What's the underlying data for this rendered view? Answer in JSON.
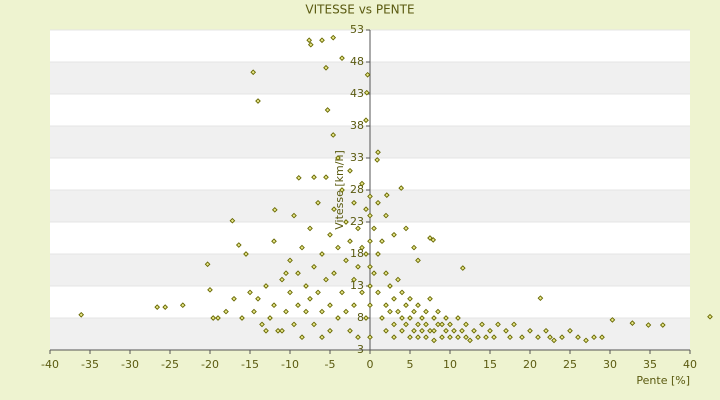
{
  "chart_data": {
    "type": "scatter",
    "title": "VITESSE vs PENTE",
    "x_label": "Pente [%]",
    "y_label": "Vitesse [km/h]",
    "xlim": [
      -40,
      40
    ],
    "xticks": [
      -40,
      -35,
      -30,
      -25,
      -20,
      -15,
      -10,
      -5,
      0,
      5,
      10,
      15,
      20,
      25,
      30,
      35,
      40
    ],
    "ylim": [
      3,
      53
    ],
    "yticks": [
      3,
      8,
      13,
      18,
      23,
      28,
      33,
      38,
      43,
      48,
      53
    ],
    "grid": true,
    "x": [
      -36.1,
      -26.6,
      -25.6,
      -23.4,
      -20.3,
      -20,
      -19.6,
      -19,
      -17.2,
      -16.4,
      -14.6,
      -14,
      -11.9,
      -8.9,
      -7.6,
      -7.4,
      -6,
      -4.6,
      -5.5,
      -3.5,
      -5.3,
      -4.6,
      -0.3,
      -0.4,
      -0.5,
      1,
      0.9,
      3.9,
      2.1,
      7.5,
      7.9,
      11.6,
      21.3,
      30.3,
      32.8,
      34.8,
      36.6,
      42.5,
      -15,
      -14.5,
      -14,
      -13.5,
      -13,
      -12.5,
      -12,
      -11.5,
      -11,
      -10.5,
      -10,
      -10,
      -9.5,
      -9,
      -9,
      -8.5,
      -8.5,
      -8,
      -8,
      -7.5,
      -7.5,
      -7,
      -7,
      -6.5,
      -6.5,
      -6,
      -6,
      -6,
      -5.5,
      -5.5,
      -5,
      -5,
      -5,
      -4.5,
      -4.5,
      -4,
      -4,
      -4,
      -3.5,
      -3.5,
      -3,
      -3,
      -3,
      -2.5,
      -2.5,
      -2.5,
      -2,
      -2,
      -2,
      -1.5,
      -1.5,
      -1.5,
      -1,
      -1,
      -1,
      -0.5,
      -0.5,
      -0.5,
      -17,
      -18,
      -16,
      -15.5,
      -13,
      -11,
      -9.5,
      -7,
      -12,
      -10.5,
      0,
      0,
      0,
      0,
      0,
      0,
      0,
      0.5,
      0.5,
      1,
      1,
      1,
      1.5,
      1.5,
      2,
      2,
      2,
      2.5,
      2.5,
      3,
      3,
      3,
      3.5,
      3.5,
      4,
      4,
      4,
      4.5,
      4.5,
      5,
      5,
      5,
      5.5,
      5.5,
      6,
      6,
      6,
      6.5,
      6.5,
      7,
      7,
      7,
      7.5,
      7.5,
      8,
      8,
      8,
      8.5,
      8.5,
      9,
      9,
      9.5,
      9.5,
      10,
      10,
      10.5,
      11,
      11,
      11.5,
      12,
      12,
      12.5,
      13,
      13.5,
      14,
      14.5,
      15,
      15.5,
      16,
      17,
      17.5,
      18,
      19,
      20,
      21,
      22,
      22.5,
      23,
      24,
      25,
      26,
      27,
      28,
      29,
      4.5,
      5.5,
      6,
      3,
      2
    ],
    "series": [
      {
        "color": "#666600",
        "values": [
          8.5,
          9.7,
          9.7,
          10,
          16.4,
          12.4,
          8,
          8,
          23.2,
          19.4,
          46.4,
          41.9,
          24.9,
          29.9,
          51.4,
          50.7,
          51.4,
          51.8,
          47.1,
          48.6,
          40.5,
          36.6,
          46,
          43.2,
          38.9,
          33.9,
          32.7,
          28.3,
          27.2,
          20.5,
          20.2,
          15.8,
          11.1,
          7.7,
          7.2,
          6.9,
          6.9,
          8.2,
          12,
          9,
          11,
          7,
          13,
          8,
          10,
          6,
          14,
          9,
          17,
          12,
          7,
          15,
          10,
          19,
          5,
          13,
          9,
          22,
          11,
          16,
          7,
          26,
          12,
          18,
          9,
          5,
          30,
          14,
          21,
          10,
          6,
          25,
          15,
          33,
          19,
          8,
          28,
          12,
          23,
          17,
          9,
          31,
          20,
          6,
          26,
          14,
          10,
          22,
          16,
          5,
          29,
          19,
          12,
          25,
          18,
          8,
          11,
          9,
          8,
          18,
          6,
          6,
          24,
          30,
          20,
          15,
          27,
          24,
          20,
          16,
          13,
          10,
          5,
          22,
          15,
          26,
          18,
          12,
          20,
          8,
          15,
          10,
          6,
          13,
          9,
          11,
          7,
          5,
          14,
          9,
          12,
          8,
          6,
          10,
          7,
          11,
          8,
          5,
          9,
          6,
          10,
          7,
          5,
          8,
          6,
          9,
          7,
          5,
          11,
          6,
          8,
          6,
          4.5,
          9,
          7,
          7,
          5,
          8,
          6,
          7,
          5,
          6,
          8,
          5,
          6,
          7,
          5,
          4.5,
          6,
          5,
          7,
          5,
          6,
          5,
          7,
          6,
          5,
          7,
          5,
          6,
          5,
          6,
          5,
          4.5,
          5,
          6,
          5,
          4.5,
          5,
          5,
          22,
          19,
          17,
          21,
          24
        ]
      }
    ]
  }
}
